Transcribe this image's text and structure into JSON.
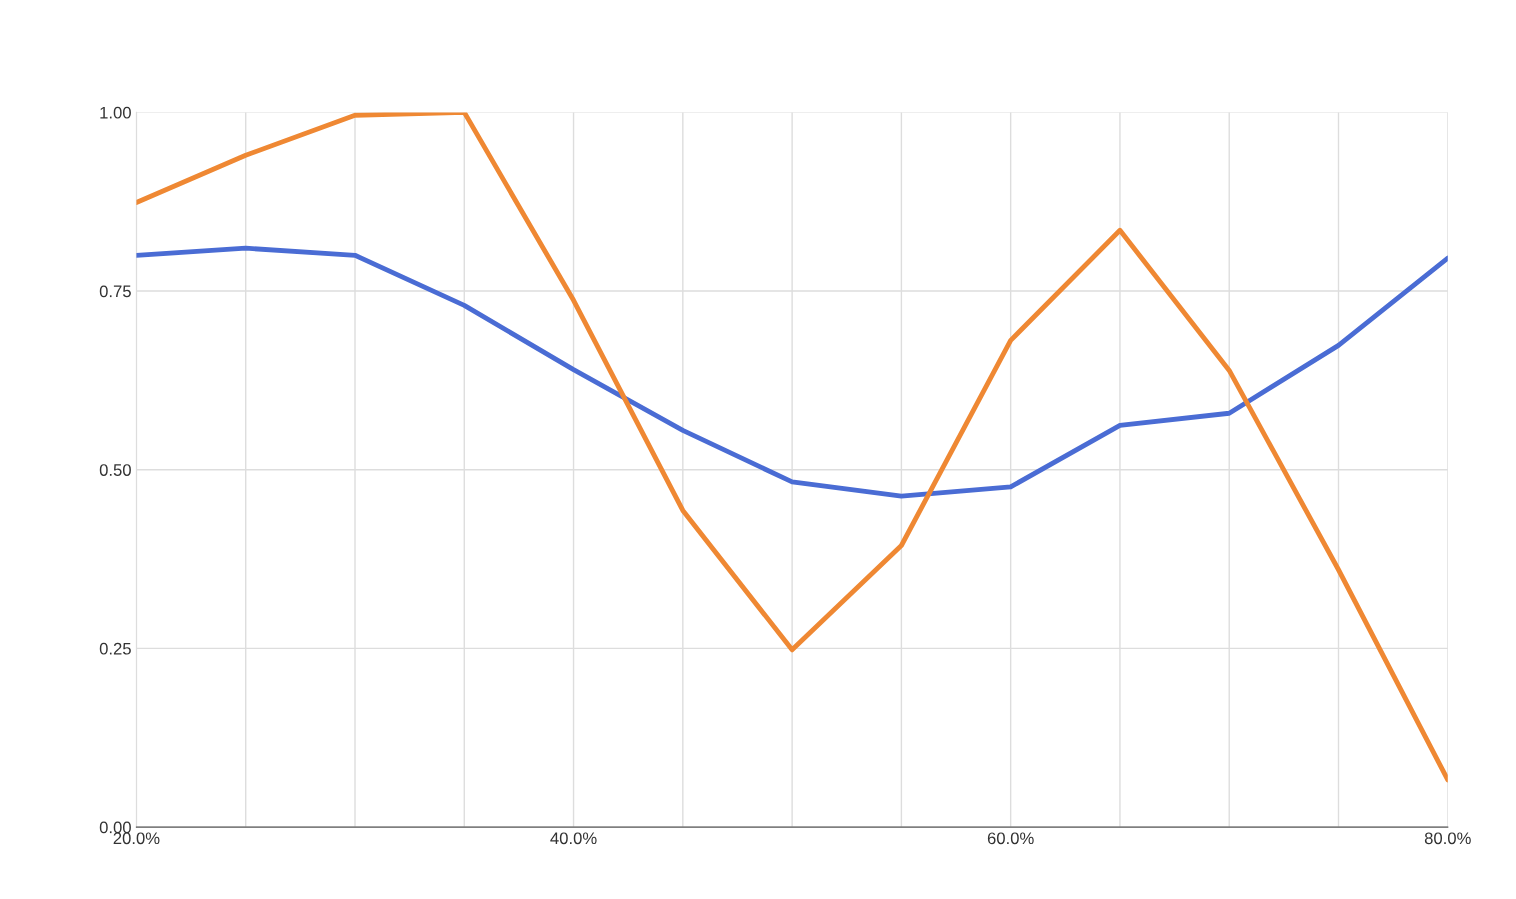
{
  "chart_data": {
    "type": "line",
    "x": [
      20,
      25,
      30,
      35,
      40,
      45,
      50,
      55,
      60,
      65,
      70,
      75,
      80
    ],
    "series": [
      {
        "color": "#4a6cd4",
        "values": [
          0.8,
          0.81,
          0.8,
          0.73,
          0.64,
          0.555,
          0.483,
          0.463,
          0.476,
          0.562,
          0.579,
          0.674,
          0.796
        ]
      },
      {
        "color": "#ef8833",
        "values": [
          0.874,
          0.94,
          0.996,
          1.0,
          0.737,
          0.443,
          0.248,
          0.394,
          0.681,
          0.835,
          0.639,
          0.36,
          0.066
        ]
      }
    ],
    "xlim": [
      20,
      80
    ],
    "xticks": [
      {
        "value": 20,
        "label": "20.0%"
      },
      {
        "value": 25,
        "label": null
      },
      {
        "value": 30,
        "label": null
      },
      {
        "value": 35,
        "label": null
      },
      {
        "value": 40,
        "label": "40.0%"
      },
      {
        "value": 45,
        "label": null
      },
      {
        "value": 50,
        "label": null
      },
      {
        "value": 55,
        "label": null
      },
      {
        "value": 60,
        "label": "60.0%"
      },
      {
        "value": 65,
        "label": null
      },
      {
        "value": 70,
        "label": null
      },
      {
        "value": 75,
        "label": null
      },
      {
        "value": 80,
        "label": "80.0%"
      }
    ],
    "ylim": [
      0,
      1
    ],
    "yticks": [
      {
        "value": 0,
        "label": "0.00"
      },
      {
        "value": 0.25,
        "label": "0.25"
      },
      {
        "value": 0.5,
        "label": "0.50"
      },
      {
        "value": 0.75,
        "label": "0.75"
      },
      {
        "value": 1,
        "label": "1.00"
      }
    ],
    "grid": true,
    "marker": "none",
    "line_style": "solid"
  }
}
